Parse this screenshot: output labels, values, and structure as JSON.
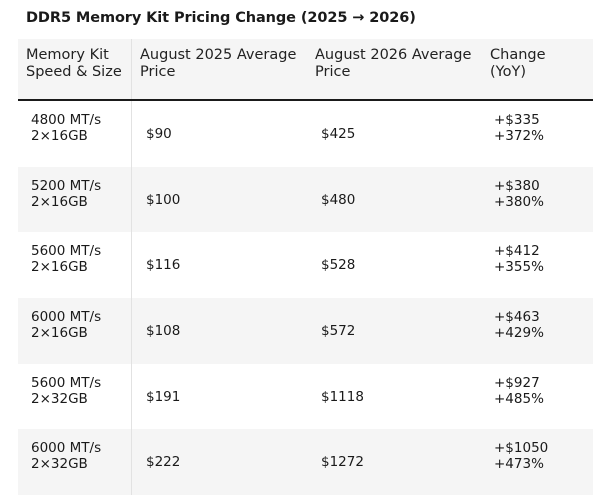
{
  "title": "DDR5 Memory Kit Pricing Change (2025 → 2026)",
  "table": {
    "headers": [
      [
        "Memory Kit",
        "Speed & Size"
      ],
      [
        "August 2025 Average",
        "Price"
      ],
      [
        "August 2026 Average",
        "Price"
      ],
      [
        "Change",
        "(YoY)"
      ]
    ],
    "rows": [
      {
        "speed": "4800 MT/s",
        "size": "2×16GB",
        "price_2025": "$90",
        "price_2026": "$425",
        "change_abs": "+$335",
        "change_pct": "+372%"
      },
      {
        "speed": "5200 MT/s",
        "size": "2×16GB",
        "price_2025": "$100",
        "price_2026": "$480",
        "change_abs": "+$380",
        "change_pct": "+380%"
      },
      {
        "speed": "5600 MT/s",
        "size": "2×16GB",
        "price_2025": "$116",
        "price_2026": "$528",
        "change_abs": "+$412",
        "change_pct": "+355%"
      },
      {
        "speed": "6000 MT/s",
        "size": "2×16GB",
        "price_2025": "$108",
        "price_2026": "$572",
        "change_abs": "+$463",
        "change_pct": "+429%"
      },
      {
        "speed": "5600 MT/s",
        "size": "2×32GB",
        "price_2025": "$191",
        "price_2026": "$1118",
        "change_abs": "+$927",
        "change_pct": "+485%"
      },
      {
        "speed": "6000 MT/s",
        "size": "2×32GB",
        "price_2025": "$222",
        "price_2026": "$1272",
        "change_abs": "+$1050",
        "change_pct": "+473%"
      }
    ]
  }
}
